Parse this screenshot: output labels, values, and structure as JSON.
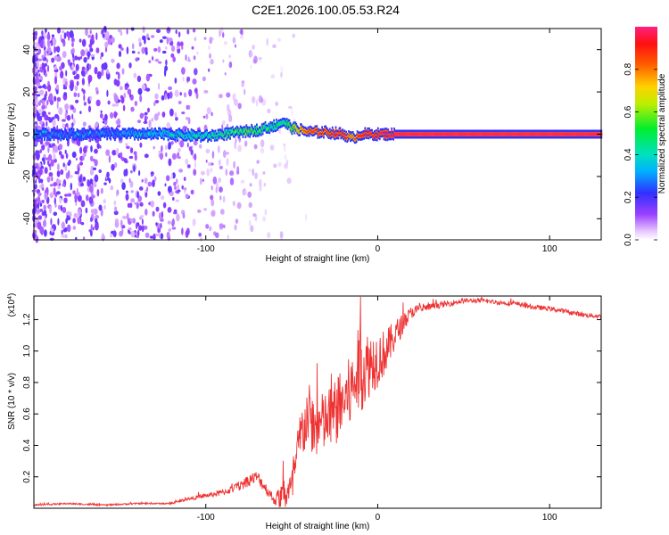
{
  "title": "C2E1.2026.100.05.53.R24",
  "chart_data": [
    {
      "type": "heatmap",
      "xlabel": "Height of straight line (km)",
      "ylabel": "Frequency (Hz)",
      "xlim": [
        -200,
        130
      ],
      "ylim": [
        -50,
        50
      ],
      "x_ticks": [
        -100,
        0,
        100
      ],
      "x_tick_labels": [
        "-100",
        "0",
        "100"
      ],
      "y_ticks": [
        -40,
        -20,
        0,
        20,
        40
      ],
      "y_tick_labels": [
        "-40",
        "-20",
        "0",
        "20",
        "40"
      ],
      "colorbar": {
        "label": "Normalized spectral amplitude",
        "range": [
          0,
          1
        ],
        "ticks": [
          0,
          0.2,
          0.4,
          0.6,
          0.8
        ],
        "tick_labels": [
          "0.0",
          "0.2",
          "0.4",
          "0.6",
          "0.8"
        ]
      },
      "ridge": {
        "x": [
          -200,
          -180,
          -160,
          -140,
          -120,
          -100,
          -90,
          -80,
          -70,
          -60,
          -55,
          -50,
          -45,
          -40,
          -30,
          -20,
          -15,
          -10,
          0,
          10,
          20,
          40,
          60,
          80,
          100,
          130
        ],
        "frequency_hz": [
          0,
          0,
          0,
          0,
          0,
          -1,
          0,
          1,
          2,
          4,
          6,
          3,
          2,
          1,
          1,
          0,
          -2,
          0,
          0,
          0,
          0,
          0,
          0,
          0,
          0,
          0
        ],
        "amplitude": [
          0.3,
          0.3,
          0.3,
          0.35,
          0.4,
          0.45,
          0.5,
          0.55,
          0.55,
          0.5,
          0.45,
          0.6,
          0.8,
          0.9,
          0.9,
          0.95,
          0.8,
          0.95,
          0.95,
          1.0,
          1.0,
          1.0,
          1.0,
          1.0,
          1.0,
          1.0
        ]
      },
      "noise_scatter_extent_km": [
        -200,
        -60
      ]
    },
    {
      "type": "line",
      "xlabel": "Height of straight line (km)",
      "ylabel": "SNR (10 * v/v)",
      "y_multiplier": "(x10",
      "y_multiplier_exp": "4",
      "y_multiplier_close": ")",
      "xlim": [
        -200,
        130
      ],
      "ylim": [
        0,
        1.35
      ],
      "x_ticks": [
        -100,
        0,
        100
      ],
      "x_tick_labels": [
        "-100",
        "0",
        "100"
      ],
      "y_ticks": [
        0.2,
        0.4,
        0.6,
        0.8,
        1.0,
        1.2
      ],
      "y_tick_labels": [
        "0.2",
        "0.4",
        "0.6",
        "0.8",
        "1.0",
        "1.2"
      ],
      "series": [
        {
          "name": "SNR",
          "color": "#ee3333",
          "x": [
            -200,
            -180,
            -160,
            -140,
            -120,
            -110,
            -100,
            -90,
            -80,
            -75,
            -70,
            -66,
            -60,
            -55,
            -50,
            -48,
            -45,
            -42,
            -40,
            -37,
            -35,
            -30,
            -25,
            -20,
            -15,
            -12,
            -10,
            -8,
            -5,
            0,
            5,
            10,
            15,
            20,
            30,
            40,
            50,
            60,
            70,
            80,
            90,
            100,
            110,
            120,
            130
          ],
          "y": [
            0.02,
            0.03,
            0.02,
            0.03,
            0.03,
            0.06,
            0.08,
            0.1,
            0.14,
            0.18,
            0.2,
            0.14,
            0.05,
            0.08,
            0.12,
            0.25,
            0.45,
            0.55,
            0.6,
            0.5,
            0.52,
            0.55,
            0.6,
            0.68,
            0.75,
            0.85,
            0.92,
            0.88,
            0.92,
            0.95,
            1.0,
            1.1,
            1.18,
            1.25,
            1.28,
            1.3,
            1.32,
            1.32,
            1.31,
            1.3,
            1.28,
            1.27,
            1.25,
            1.23,
            1.22
          ],
          "noise_amplitude": [
            0.005,
            0.005,
            0.005,
            0.005,
            0.005,
            0.01,
            0.015,
            0.02,
            0.03,
            0.04,
            0.04,
            0.04,
            0.03,
            0.1,
            0.12,
            0.14,
            0.18,
            0.2,
            0.2,
            0.2,
            0.2,
            0.2,
            0.22,
            0.22,
            0.24,
            0.26,
            0.3,
            0.25,
            0.22,
            0.18,
            0.14,
            0.1,
            0.06,
            0.04,
            0.02,
            0.02,
            0.015,
            0.015,
            0.015,
            0.015,
            0.015,
            0.015,
            0.015,
            0.015,
            0.015
          ]
        }
      ]
    }
  ]
}
